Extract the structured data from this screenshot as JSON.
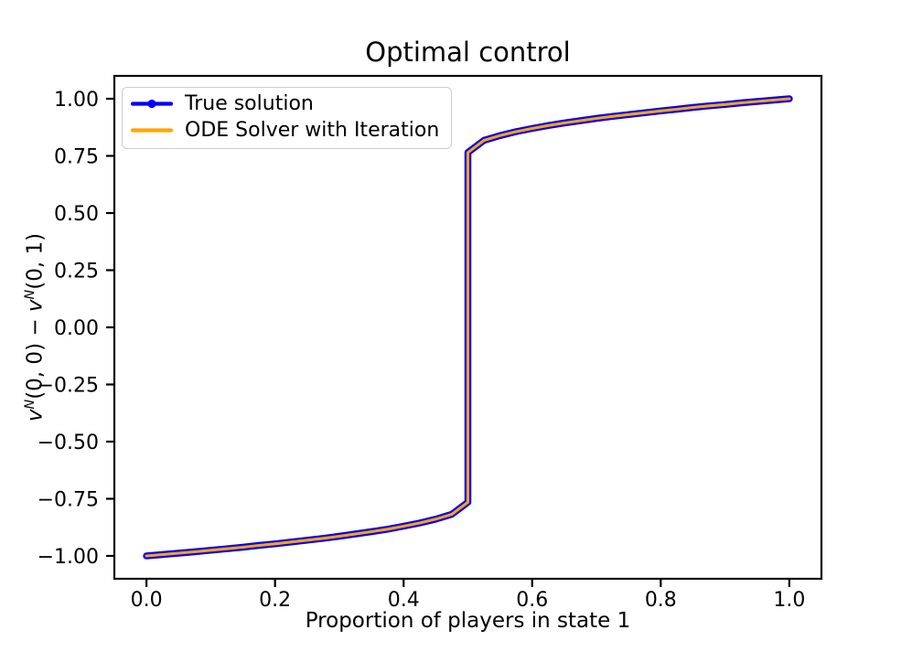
{
  "chart_data": {
    "type": "line",
    "title": "Optimal control",
    "xlabel": "Proportion of players in state 1",
    "ylabel": "v^N(0, 0) − v^N(0, 1)",
    "xlim": [
      -0.05,
      1.05
    ],
    "ylim": [
      -1.1,
      1.1
    ],
    "grid": false,
    "background": "#ffffff",
    "axis_color": "#000000",
    "x_ticks": {
      "values": [
        0.0,
        0.2,
        0.4,
        0.6,
        0.8,
        1.0
      ],
      "labels": [
        "0.0",
        "0.2",
        "0.4",
        "0.6",
        "0.8",
        "1.0"
      ]
    },
    "y_ticks": {
      "values": [
        1.0,
        0.75,
        0.5,
        0.25,
        0.0,
        -0.25,
        -0.5,
        -0.75,
        -1.0
      ],
      "labels": [
        "1.00",
        "0.75",
        "0.50",
        "0.25",
        "0.00",
        "−0.25",
        "−0.50",
        "−0.75",
        "−1.00"
      ]
    },
    "legend": {
      "position": "upper left",
      "items": [
        {
          "label": "True solution",
          "color": "#0000ff",
          "marker": "circle"
        },
        {
          "label": "ODE Solver with Iteration",
          "color": "#ffa500",
          "marker": "none"
        }
      ]
    },
    "series": [
      {
        "name": "True solution",
        "color": "#0000ff",
        "line_width": 7.5,
        "marker": "circle",
        "marker_size": 3.6,
        "x": [
          0,
          0.025,
          0.05,
          0.075,
          0.1,
          0.125,
          0.15,
          0.175,
          0.2,
          0.225,
          0.25,
          0.275,
          0.3,
          0.325,
          0.35,
          0.375,
          0.4,
          0.425,
          0.45,
          0.475,
          0.5,
          0.5,
          0.525,
          0.55,
          0.575,
          0.6,
          0.625,
          0.65,
          0.675,
          0.7,
          0.725,
          0.75,
          0.775,
          0.8,
          0.825,
          0.85,
          0.875,
          0.9,
          0.925,
          0.95,
          0.975,
          1.0
        ],
        "y": [
          -1.0,
          -0.994,
          -0.988,
          -0.982,
          -0.975,
          -0.969,
          -0.962,
          -0.954,
          -0.947,
          -0.939,
          -0.931,
          -0.923,
          -0.914,
          -0.904,
          -0.894,
          -0.883,
          -0.87,
          -0.856,
          -0.839,
          -0.818,
          -0.765,
          0.765,
          0.818,
          0.839,
          0.856,
          0.87,
          0.883,
          0.894,
          0.904,
          0.914,
          0.923,
          0.931,
          0.939,
          0.947,
          0.954,
          0.962,
          0.969,
          0.975,
          0.982,
          0.988,
          0.994,
          1.0
        ]
      },
      {
        "name": "ODE Solver with Iteration",
        "color": "#ffa500",
        "line_width": 3.1,
        "marker": "none",
        "marker_size": 0,
        "x": [
          0,
          0.025,
          0.05,
          0.075,
          0.1,
          0.125,
          0.15,
          0.175,
          0.2,
          0.225,
          0.25,
          0.275,
          0.3,
          0.325,
          0.35,
          0.375,
          0.4,
          0.425,
          0.45,
          0.475,
          0.5,
          0.5,
          0.525,
          0.55,
          0.575,
          0.6,
          0.625,
          0.65,
          0.675,
          0.7,
          0.725,
          0.75,
          0.775,
          0.8,
          0.825,
          0.85,
          0.875,
          0.9,
          0.925,
          0.95,
          0.975,
          1.0
        ],
        "y": [
          -1.0,
          -0.994,
          -0.988,
          -0.982,
          -0.975,
          -0.969,
          -0.962,
          -0.954,
          -0.947,
          -0.939,
          -0.931,
          -0.923,
          -0.914,
          -0.904,
          -0.894,
          -0.883,
          -0.87,
          -0.856,
          -0.839,
          -0.818,
          -0.765,
          0.765,
          0.818,
          0.839,
          0.856,
          0.87,
          0.883,
          0.894,
          0.904,
          0.914,
          0.923,
          0.931,
          0.939,
          0.947,
          0.954,
          0.962,
          0.969,
          0.975,
          0.982,
          0.988,
          0.994,
          1.0
        ]
      }
    ]
  }
}
